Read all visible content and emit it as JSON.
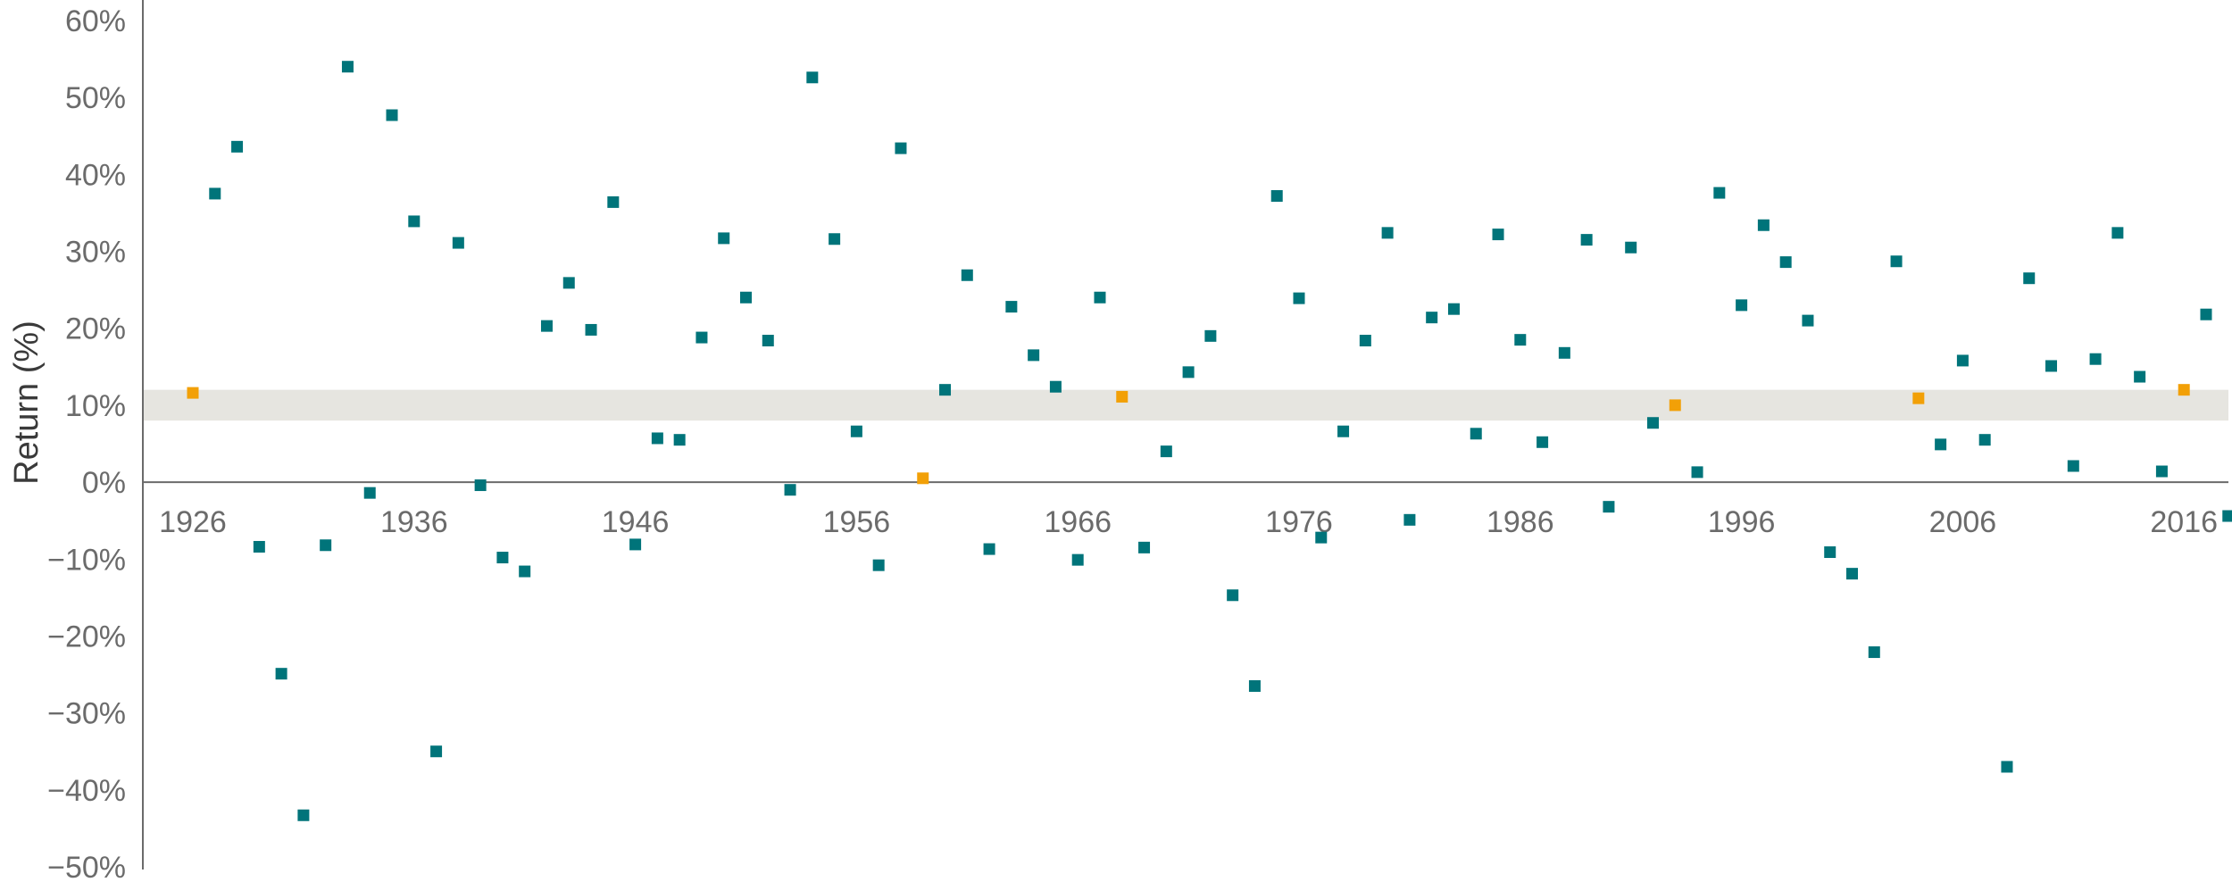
{
  "chart_data": {
    "type": "scatter",
    "title": "",
    "xlabel": "",
    "ylabel": "Return (%)",
    "xlim": [
      1925,
      2019
    ],
    "ylim": [
      -50,
      60
    ],
    "yticks": [
      60,
      50,
      40,
      30,
      20,
      10,
      0,
      -10,
      -20,
      -30,
      -40,
      -50
    ],
    "ytick_labels": [
      "60%",
      "50%",
      "40%",
      "30%",
      "20%",
      "10%",
      "0%",
      "−10%",
      "−20%",
      "−30%",
      "−40%",
      "−50%"
    ],
    "xticks": [
      1926,
      1936,
      1946,
      1956,
      1966,
      1976,
      1986,
      1996,
      2006,
      2016
    ],
    "xtick_labels": [
      "1926",
      "1936",
      "1946",
      "1956",
      "1966",
      "1976",
      "1986",
      "1996",
      "2006",
      "2016"
    ],
    "band": {
      "from": 8,
      "to": 12,
      "color": "#e6e5e0"
    },
    "colors": {
      "default": "#00747a",
      "highlight": "#f2a007"
    },
    "series": [
      {
        "x": [
          1926,
          1927,
          1928,
          1929,
          1930,
          1931,
          1932,
          1933,
          1934,
          1935,
          1936,
          1937,
          1938,
          1939,
          1940,
          1941,
          1942,
          1943,
          1944,
          1945,
          1946,
          1947,
          1948,
          1949,
          1950,
          1951,
          1952,
          1953,
          1954,
          1955,
          1956,
          1957,
          1958,
          1959,
          1960,
          1961,
          1962,
          1963,
          1964,
          1965,
          1966,
          1967,
          1968,
          1969,
          1970,
          1971,
          1972,
          1973,
          1974,
          1975,
          1976,
          1977,
          1978,
          1979,
          1980,
          1981,
          1982,
          1983,
          1984,
          1985,
          1986,
          1987,
          1988,
          1989,
          1990,
          1991,
          1992,
          1993,
          1994,
          1995,
          1996,
          1997,
          1998,
          1999,
          2000,
          2001,
          2002,
          2003,
          2004,
          2005,
          2006,
          2007,
          2008,
          2009,
          2010,
          2011,
          2012,
          2013,
          2014,
          2015,
          2016,
          2017,
          2018
        ],
        "values": [
          11.6,
          37.5,
          43.6,
          -8.4,
          -24.9,
          -43.3,
          -8.2,
          54.0,
          -1.4,
          47.7,
          33.9,
          -35.0,
          31.1,
          -0.4,
          -9.8,
          -11.6,
          20.3,
          25.9,
          19.8,
          36.4,
          -8.1,
          5.7,
          5.5,
          18.8,
          31.7,
          24.0,
          18.4,
          -1.0,
          52.6,
          31.6,
          6.6,
          -10.8,
          43.4,
          0.5,
          12.0,
          26.9,
          -8.7,
          22.8,
          16.5,
          12.4,
          -10.1,
          24.0,
          11.1,
          -8.5,
          4.0,
          14.3,
          19.0,
          -14.7,
          -26.5,
          37.2,
          23.9,
          -7.2,
          6.6,
          18.4,
          32.4,
          -4.9,
          21.4,
          22.5,
          6.3,
          32.2,
          18.5,
          5.2,
          16.8,
          31.5,
          -3.2,
          30.5,
          7.7,
          10.0,
          1.3,
          37.6,
          23.0,
          33.4,
          28.6,
          21.0,
          -9.1,
          -11.9,
          -22.1,
          28.7,
          10.9,
          4.9,
          15.8,
          5.5,
          -37.0,
          26.5,
          15.1,
          2.1,
          16.0,
          32.4,
          13.7,
          1.4,
          12.0,
          21.8,
          -4.4
        ],
        "highlight_x": [
          1926,
          1959,
          1968,
          1993,
          2004,
          2016
        ]
      }
    ]
  }
}
